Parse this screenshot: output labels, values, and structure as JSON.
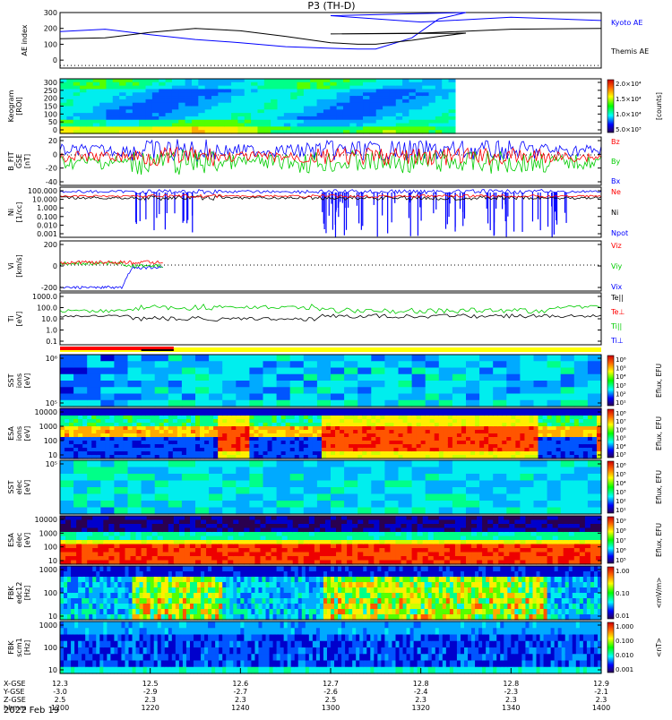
{
  "title": "P3 (TH-D)",
  "date_label": "2022 Feb 19",
  "colors": {
    "blue": "#0000ff",
    "red": "#ff0000",
    "green": "#00cc00",
    "black": "#000000",
    "yellow": "#ffff00"
  },
  "chart_data": [
    {
      "type": "line",
      "panel": "ae",
      "ylabel": "AE index",
      "ylim": [
        -50,
        300
      ],
      "yticks": [
        "300",
        "200",
        "100",
        "0"
      ],
      "x": [
        1200,
        1210,
        1220,
        1230,
        1240,
        1250,
        1260,
        1266,
        1270,
        1278,
        1284,
        1290,
        1300,
        1320,
        1340,
        1360
      ],
      "series": [
        {
          "name": "Kyoto AE",
          "color": "#0000ff",
          "values": [
            180,
            195,
            160,
            130,
            110,
            85,
            75,
            70,
            70,
            140,
            260,
            300,
            280,
            240,
            270,
            250
          ]
        },
        {
          "name": "Themis AE",
          "color": "#000000",
          "values": [
            135,
            140,
            175,
            200,
            185,
            150,
            110,
            100,
            100,
            125,
            150,
            170,
            165,
            170,
            195,
            200
          ]
        }
      ],
      "legend": [
        "Kyoto AE",
        "Themis AE"
      ]
    },
    {
      "type": "heatmap",
      "panel": "keogram",
      "ylabel": "Keogram",
      "ylabel2": "[ROI]",
      "yticks": [
        "300",
        "250",
        "200",
        "150",
        "100",
        "50",
        "0"
      ],
      "colorbar_ticks": [
        "2.0×10⁴",
        "1.5×10⁴",
        "1.0×10⁴",
        "5.0×10³"
      ],
      "colorbar_label": "[counts]"
    },
    {
      "type": "line",
      "panel": "bfield",
      "ylabel": "B_FIT",
      "ylabel2": "GSE",
      "ylabel3": "[nT]",
      "yticks": [
        "20",
        "0",
        "-20",
        "-40"
      ],
      "series": [
        {
          "name": "Bz",
          "color": "#ff0000"
        },
        {
          "name": "By",
          "color": "#00cc00"
        },
        {
          "name": "Bx",
          "color": "#0000ff"
        }
      ]
    },
    {
      "type": "line",
      "panel": "density",
      "ylabel": "Ni",
      "ylabel2": "[1/cc]",
      "yticks": [
        "100.000",
        "10.000",
        "1.000",
        "0.100",
        "0.010",
        "0.001"
      ],
      "series": [
        {
          "name": "Ne",
          "color": "#ff0000"
        },
        {
          "name": "Ni",
          "color": "#000000"
        },
        {
          "name": "Npot",
          "color": "#0000ff"
        }
      ]
    },
    {
      "type": "line",
      "panel": "velocity",
      "ylabel": "Vi",
      "ylabel2": "[km/s]",
      "yticks": [
        "200",
        "0",
        "-200"
      ],
      "series": [
        {
          "name": "Viz",
          "color": "#ff0000"
        },
        {
          "name": "Viy",
          "color": "#00cc00"
        },
        {
          "name": "Vix",
          "color": "#0000ff"
        }
      ]
    },
    {
      "type": "line",
      "panel": "temperature",
      "ylabel": "Ti",
      "ylabel2": "[eV]",
      "yticks": [
        "1000.0",
        "100.0",
        "10.0",
        "1.0",
        "0.1"
      ],
      "series": [
        {
          "name": "Te||",
          "color": "#000000"
        },
        {
          "name": "Te⊥",
          "color": "#ff0000"
        },
        {
          "name": "Ti||",
          "color": "#00cc00"
        },
        {
          "name": "Ti⊥",
          "color": "#0000ff"
        }
      ]
    },
    {
      "type": "heatmap",
      "panel": "sst_ion",
      "ylabel": "SST",
      "ylabel2": "ions",
      "ylabel3": "[eV]",
      "yticks": [
        "10⁶",
        "10⁵"
      ],
      "colorbar_ticks": [
        "10⁶",
        "10⁵",
        "10⁴",
        "10³",
        "10²",
        "10¹"
      ],
      "colorbar_label": "Eflux, EFU"
    },
    {
      "type": "heatmap",
      "panel": "esa_ion",
      "ylabel": "ESA",
      "ylabel2": "ions",
      "ylabel3": "[eV]",
      "yticks": [
        "10000",
        "1000",
        "100",
        "10"
      ],
      "colorbar_ticks": [
        "10⁸",
        "10⁷",
        "10⁶",
        "10⁵",
        "10⁴",
        "10³"
      ],
      "colorbar_label": "Eflux, EFU"
    },
    {
      "type": "heatmap",
      "panel": "sst_elec",
      "ylabel": "SST",
      "ylabel2": "elec",
      "ylabel3": "[eV]",
      "yticks": [
        "10⁵"
      ],
      "colorbar_ticks": [
        "10⁶",
        "10⁵",
        "10⁴",
        "10³",
        "10²",
        "10¹"
      ],
      "colorbar_label": "Eflux, EFU"
    },
    {
      "type": "heatmap",
      "panel": "esa_elec",
      "ylabel": "ESA",
      "ylabel2": "elec",
      "ylabel3": "[eV]",
      "yticks": [
        "10000",
        "1000",
        "100",
        "10"
      ],
      "colorbar_ticks": [
        "10⁹",
        "10⁸",
        "10⁷",
        "10⁶",
        "10⁵"
      ],
      "colorbar_label": "Eflux, EFU"
    },
    {
      "type": "heatmap",
      "panel": "fbk_e",
      "ylabel": "FBK",
      "ylabel2": "edc12",
      "ylabel3": "[Hz]",
      "yticks": [
        "1000",
        "100",
        "10"
      ],
      "colorbar_ticks": [
        "1.00",
        "0.10",
        "0.01"
      ],
      "colorbar_label": "<mV/m>"
    },
    {
      "type": "heatmap",
      "panel": "fbk_b",
      "ylabel": "FBK",
      "ylabel2": "scm1",
      "ylabel3": "[Hz]",
      "yticks": [
        "1000",
        "100",
        "10"
      ],
      "colorbar_ticks": [
        "1.000",
        "0.100",
        "0.010",
        "0.001"
      ],
      "colorbar_label": "<nT>"
    }
  ],
  "xaxis": {
    "row_labels": [
      "X-GSE",
      "Y-GSE",
      "Z-GSE",
      "hhmm"
    ],
    "ticks": [
      {
        "x": "12.3",
        "y": "-3.0",
        "z": "2.5",
        "t": "1200"
      },
      {
        "x": "12.5",
        "y": "-2.9",
        "z": "2.3",
        "t": "1220"
      },
      {
        "x": "12.6",
        "y": "-2.7",
        "z": "2.3",
        "t": "1240"
      },
      {
        "x": "12.7",
        "y": "-2.6",
        "z": "2.5",
        "t": "1300"
      },
      {
        "x": "12.8",
        "y": "-2.4",
        "z": "2.3",
        "t": "1320"
      },
      {
        "x": "12.8",
        "y": "-2.3",
        "z": "2.3",
        "t": "1340"
      },
      {
        "x": "12.9",
        "y": "-2.1",
        "z": "2.3",
        "t": "1400"
      }
    ]
  }
}
